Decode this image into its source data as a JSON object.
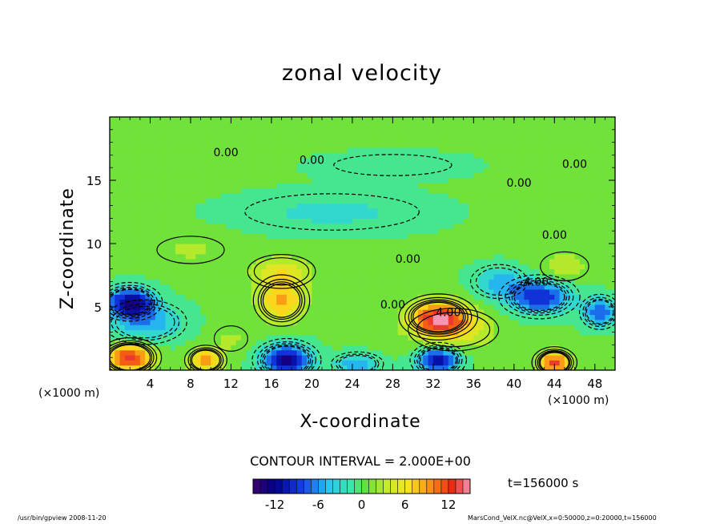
{
  "chart_data": {
    "type": "heatmap",
    "title": "zonal velocity",
    "xlabel": "X-coordinate",
    "ylabel": "Z-coordinate",
    "x_unit_left": "(×1000 m)",
    "x_unit_right": "(×1000 m)",
    "xlim": [
      0,
      50
    ],
    "ylim": [
      0,
      20
    ],
    "x_ticks": [
      "4",
      "8",
      "12",
      "16",
      "20",
      "24",
      "28",
      "32",
      "36",
      "40",
      "44",
      "48"
    ],
    "x_tick_values": [
      4,
      8,
      12,
      16,
      20,
      24,
      28,
      32,
      36,
      40,
      44,
      48
    ],
    "y_ticks": [
      "5",
      "10",
      "15"
    ],
    "y_tick_values": [
      5,
      10,
      15
    ],
    "contour_interval_text": "CONTOUR INTERVAL = 2.000E+00",
    "contour_interval": 2.0,
    "contour_labels": [
      {
        "text": "0.00",
        "x": 11.5,
        "z": 17.2
      },
      {
        "text": "0.00",
        "x": 20.0,
        "z": 16.6
      },
      {
        "text": "0.00",
        "x": 46.0,
        "z": 16.3
      },
      {
        "text": "0.00",
        "x": 40.5,
        "z": 14.8
      },
      {
        "text": "0.00",
        "x": 44.0,
        "z": 10.7
      },
      {
        "text": "0.00",
        "x": 29.5,
        "z": 8.8
      },
      {
        "text": "0.00",
        "x": 28.0,
        "z": 5.2
      },
      {
        "text": "4.00",
        "x": 33.5,
        "z": 4.6
      },
      {
        "text": "-4.00",
        "x": 42.0,
        "z": 7.0
      }
    ],
    "colorbar": {
      "min": -15,
      "max": 15,
      "ticks": [
        "-12",
        "-6",
        "0",
        "6",
        "12"
      ],
      "tick_values": [
        -12,
        -6,
        0,
        6,
        12
      ]
    },
    "time_label": "t=156000 s",
    "features": [
      {
        "x": 17,
        "z": 5.5,
        "value": 8,
        "sx": 2.2,
        "sz": 1.6
      },
      {
        "x": 17,
        "z": 7.8,
        "value": 5,
        "sx": 3.0,
        "sz": 1.2
      },
      {
        "x": 32.5,
        "z": 4.2,
        "value": 12,
        "sx": 2.8,
        "sz": 1.3
      },
      {
        "x": 34,
        "z": 3.2,
        "value": 5,
        "sx": 4.0,
        "sz": 1.5
      },
      {
        "x": 2.0,
        "z": 1.0,
        "value": 13,
        "sx": 2.2,
        "sz": 1.1
      },
      {
        "x": 9.5,
        "z": 0.8,
        "value": 9,
        "sx": 1.6,
        "sz": 0.9
      },
      {
        "x": 44.0,
        "z": 0.6,
        "value": 12,
        "sx": 1.6,
        "sz": 0.9
      },
      {
        "x": 24.5,
        "z": 0.5,
        "value": -6,
        "sx": 2.2,
        "sz": 0.8
      },
      {
        "x": 17.5,
        "z": 0.8,
        "value": -13,
        "sx": 2.4,
        "sz": 1.2
      },
      {
        "x": 32.5,
        "z": 0.8,
        "value": -12,
        "sx": 2.0,
        "sz": 1.0
      },
      {
        "x": 2.0,
        "z": 5.4,
        "value": -12,
        "sx": 2.3,
        "sz": 1.1
      },
      {
        "x": 3.5,
        "z": 3.8,
        "value": -6,
        "sx": 3.5,
        "sz": 1.5
      },
      {
        "x": 42.5,
        "z": 5.8,
        "value": -10,
        "sx": 3.0,
        "sz": 1.3
      },
      {
        "x": 48.5,
        "z": 4.6,
        "value": -8,
        "sx": 1.6,
        "sz": 1.1
      },
      {
        "x": 38.5,
        "z": 7.0,
        "value": -5,
        "sx": 2.5,
        "sz": 1.2
      },
      {
        "x": 22,
        "z": 12.5,
        "value": -3,
        "sx": 9.0,
        "sz": 1.5
      },
      {
        "x": 28,
        "z": 16.2,
        "value": -2,
        "sx": 7.0,
        "sz": 1.0
      },
      {
        "x": 8,
        "z": 9.5,
        "value": 2,
        "sx": 4.0,
        "sz": 1.3
      },
      {
        "x": 45,
        "z": 8.2,
        "value": 3,
        "sx": 2.5,
        "sz": 1.2
      },
      {
        "x": 12.0,
        "z": 2.5,
        "value": 2,
        "sx": 2.0,
        "sz": 1.2
      }
    ]
  },
  "footer": {
    "left": "/usr/bin/gpview   2008-11-20",
    "right": "MarsCond_VelX.nc@VelX,x=0:50000,z=0:20000,t=156000"
  }
}
